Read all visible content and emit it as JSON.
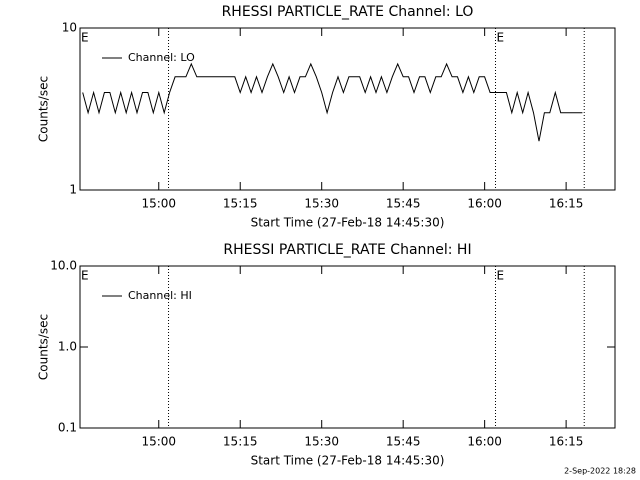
{
  "chart_data": [
    {
      "type": "line",
      "title": "RHESSI PARTICLE_RATE Channel: LO",
      "ylabel": "Counts/sec",
      "xlabel": "Start Time (27-Feb-18 14:45:30)",
      "log_y": true,
      "ylim": [
        1,
        10
      ],
      "yticks": [
        1,
        10
      ],
      "xlim": [
        "14:45:30",
        "16:24:00"
      ],
      "xticks": [
        {
          "value": "15:00:00",
          "label": "15:00"
        },
        {
          "value": "15:15:00",
          "label": "15:15"
        },
        {
          "value": "15:30:00",
          "label": "15:30"
        },
        {
          "value": "15:45:00",
          "label": "15:45"
        },
        {
          "value": "16:00:00",
          "label": "16:00"
        },
        {
          "value": "16:15:00",
          "label": "16:15"
        }
      ],
      "x": [
        "14:46",
        "14:47",
        "14:48",
        "14:49",
        "14:50",
        "14:51",
        "14:52",
        "14:53",
        "14:54",
        "14:55",
        "14:56",
        "14:57",
        "14:58",
        "14:59",
        "15:00",
        "15:01",
        "15:02",
        "15:03",
        "15:04",
        "15:05",
        "15:06",
        "15:07",
        "15:08",
        "15:09",
        "15:10",
        "15:11",
        "15:12",
        "15:13",
        "15:14",
        "15:15",
        "15:16",
        "15:17",
        "15:18",
        "15:19",
        "15:20",
        "15:21",
        "15:22",
        "15:23",
        "15:24",
        "15:25",
        "15:26",
        "15:27",
        "15:28",
        "15:29",
        "15:30",
        "15:31",
        "15:32",
        "15:33",
        "15:34",
        "15:35",
        "15:36",
        "15:37",
        "15:38",
        "15:39",
        "15:40",
        "15:41",
        "15:42",
        "15:43",
        "15:44",
        "15:45",
        "15:46",
        "15:47",
        "15:48",
        "15:49",
        "15:50",
        "15:51",
        "15:52",
        "15:53",
        "15:54",
        "15:55",
        "15:56",
        "15:57",
        "15:58",
        "15:59",
        "16:00",
        "16:01",
        "16:02",
        "16:03",
        "16:04",
        "16:05",
        "16:06",
        "16:07",
        "16:08",
        "16:09",
        "16:10",
        "16:11",
        "16:12",
        "16:13",
        "16:14",
        "16:15",
        "16:16",
        "16:17",
        "16:18"
      ],
      "series": [
        {
          "name": "Channel: LO",
          "color": "#000000",
          "values": [
            4,
            3,
            4,
            3,
            4,
            4,
            3,
            4,
            3,
            4,
            3,
            4,
            4,
            3,
            4,
            3,
            4,
            5,
            5,
            5,
            6,
            5,
            5,
            5,
            5,
            5,
            5,
            5,
            5,
            4,
            5,
            4,
            5,
            4,
            5,
            6,
            5,
            4,
            5,
            4,
            5,
            5,
            6,
            5,
            4,
            3,
            4,
            5,
            4,
            5,
            5,
            5,
            4,
            5,
            4,
            5,
            4,
            5,
            6,
            5,
            5,
            4,
            5,
            5,
            4,
            5,
            5,
            6,
            5,
            5,
            4,
            5,
            4,
            5,
            5,
            4,
            4,
            4,
            4,
            3,
            4,
            3,
            4,
            3,
            2,
            3,
            3,
            4,
            3,
            3,
            3,
            3,
            3
          ]
        }
      ],
      "markers": [
        "15:01:48",
        "16:02:00",
        "16:18:20"
      ],
      "annotations": [
        {
          "text": "E",
          "x": "14:45:30"
        },
        {
          "text": "E",
          "x": "16:02:00"
        }
      ]
    },
    {
      "type": "line",
      "title": "RHESSI PARTICLE_RATE Channel: HI",
      "ylabel": "Counts/sec",
      "xlabel": "Start Time (27-Feb-18 14:45:30)",
      "log_y": true,
      "ylim": [
        0.1,
        10
      ],
      "yticks": [
        {
          "value": 0.1,
          "label": "0.1"
        },
        {
          "value": 1,
          "label": "1.0"
        },
        {
          "value": 10,
          "label": "10.0"
        }
      ],
      "xlim": [
        "14:45:30",
        "16:24:00"
      ],
      "xticks": [
        {
          "value": "15:00:00",
          "label": "15:00"
        },
        {
          "value": "15:15:00",
          "label": "15:15"
        },
        {
          "value": "15:30:00",
          "label": "15:30"
        },
        {
          "value": "15:45:00",
          "label": "15:45"
        },
        {
          "value": "16:00:00",
          "label": "16:00"
        },
        {
          "value": "16:15:00",
          "label": "16:15"
        }
      ],
      "x": [],
      "series": [
        {
          "name": "Channel: HI",
          "color": "#000000",
          "values": []
        }
      ],
      "markers": [
        "15:01:48",
        "16:02:00",
        "16:18:20"
      ],
      "annotations": [
        {
          "text": "E",
          "x": "14:45:30"
        },
        {
          "text": "E",
          "x": "16:02:00"
        }
      ]
    }
  ],
  "footer": "2-Sep-2022 18:28"
}
